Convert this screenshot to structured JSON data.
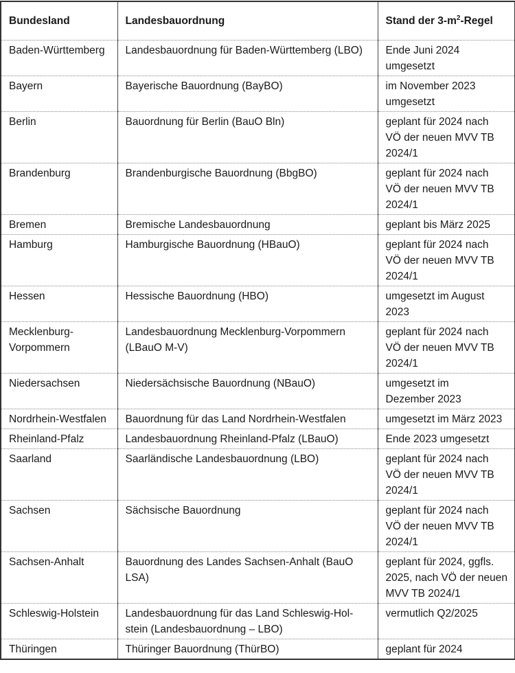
{
  "header": {
    "col1": "Bundesland",
    "col2": "Landesbauordnung",
    "col3_prefix": "Stand der 3-m",
    "col3_sup": "2",
    "col3_suffix": "-Regel"
  },
  "rows": [
    {
      "land": "Baden-Württemberg",
      "lbo": "Landesbauordnung für Baden-Württemberg (LBO)",
      "stand": "Ende Juni 2024\numgesetzt"
    },
    {
      "land": "Bayern",
      "lbo": "Bayerische Bauordnung (BayBO)",
      "stand": "im November 2023\numgesetzt"
    },
    {
      "land": "Berlin",
      "lbo": "Bauordnung für Berlin (BauO Bln)",
      "stand": "geplant für 2024 nach\nVÖ der neuen MVV TB\n2024/1"
    },
    {
      "land": "Brandenburg",
      "lbo": "Brandenburgische Bauordnung (BbgBO)",
      "stand": "geplant für 2024 nach\nVÖ der neuen MVV TB\n2024/1"
    },
    {
      "land": "Bremen",
      "lbo": "Bremische Landesbauordnung",
      "stand": "geplant bis März 2025"
    },
    {
      "land": "Hamburg",
      "lbo": "Hamburgische Bauordnung (HBauO)",
      "stand": "geplant für 2024 nach\nVÖ der neuen MVV TB\n2024/1"
    },
    {
      "land": "Hessen",
      "lbo": "Hessische Bauordnung (HBO)",
      "stand": "umgesetzt im August\n2023"
    },
    {
      "land": "Mecklenburg-\nVorpommern",
      "lbo": "Landesbauordnung Mecklenburg-Vorpommern\n(LBauO M-V)",
      "stand": "geplant für 2024 nach\nVÖ der neuen MVV TB\n2024/1"
    },
    {
      "land": "Niedersachsen",
      "lbo": "Niedersächsische Bauordnung (NBauO)",
      "stand": "umgesetzt im\nDezember 2023"
    },
    {
      "land": "Nordrhein-Westfalen",
      "lbo": "Bauordnung für das Land Nordrhein-Westfalen",
      "stand": "umgesetzt im März 2023"
    },
    {
      "land": "Rheinland-Pfalz",
      "lbo": "Landesbauordnung Rheinland-Pfalz (LBauO)",
      "stand": "Ende 2023 umgesetzt"
    },
    {
      "land": "Saarland",
      "lbo": "Saarländische Landesbauordnung (LBO)",
      "stand": "geplant für 2024 nach\nVÖ der neuen MVV TB\n2024/1"
    },
    {
      "land": "Sachsen",
      "lbo": "Sächsische Bauordnung",
      "stand": "geplant für 2024 nach\nVÖ der neuen MVV TB\n2024/1"
    },
    {
      "land": "Sachsen-Anhalt",
      "lbo": "Bauordnung des Landes Sachsen-Anhalt (BauO LSA)",
      "stand": "geplant für 2024, ggfls.\n2025, nach VÖ der neuen\nMVV TB 2024/1"
    },
    {
      "land": "Schleswig-Holstein",
      "lbo": "Landesbauordnung für das Land Schleswig-Hol-\nstein (Landesbauordnung – LBO)",
      "stand": "vermutlich Q2/2025"
    },
    {
      "land": "Thüringen",
      "lbo": "Thüringer Bauordnung (ThürBO)",
      "stand": "geplant für 2024"
    }
  ]
}
